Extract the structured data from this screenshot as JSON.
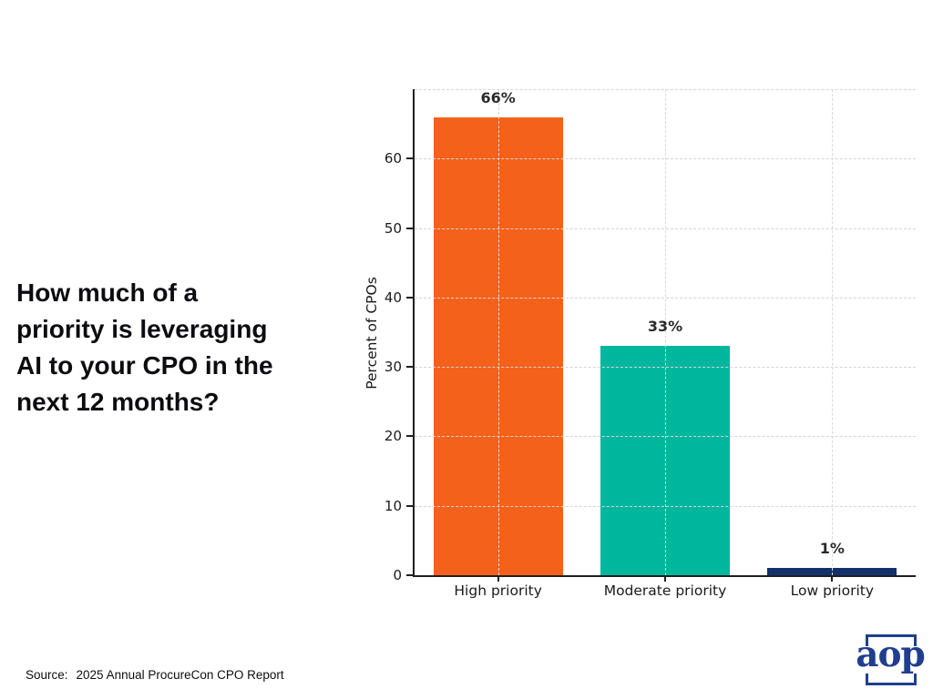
{
  "page": {
    "question": "How much of a\npriority is leveraging\nAI to your CPO in the\nnext 12 months?",
    "source_prefix": "Source:",
    "source_text": "2025 Annual ProcureCon CPO Report",
    "logo_text": "aop"
  },
  "chart_data": {
    "type": "bar",
    "title": "",
    "categories": [
      "High priority",
      "Moderate priority",
      "Low priority"
    ],
    "values": [
      66,
      33,
      1
    ],
    "value_labels": [
      "66%",
      "33%",
      "1%"
    ],
    "bar_colors": [
      "#f4611b",
      "#00b79e",
      "#12306b"
    ],
    "xlabel": "",
    "ylabel": "Percent of CPOs",
    "ylim": [
      0,
      70
    ],
    "yticks": [
      0,
      10,
      20,
      30,
      40,
      50,
      60
    ],
    "grid": "dashed, horizontal and vertical at bar centers, drawn above bars",
    "grid_color": "#d8d8d8",
    "axis_color": "#1f1f1f",
    "value_label_color": "#2b2b2b",
    "legend": "none"
  }
}
